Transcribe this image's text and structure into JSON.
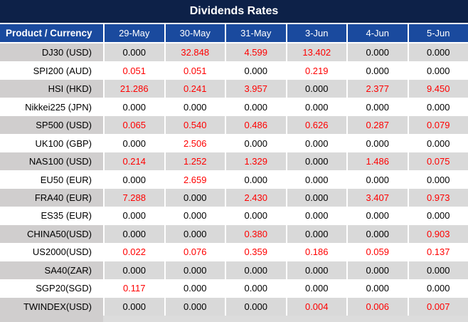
{
  "title": "Dividends Rates",
  "colors": {
    "title_bg": "#0D2148",
    "header_bg": "#1A4A9E",
    "border_white": "#FFFFFF",
    "row_gray": "#D9D9D9",
    "row_gray_first": "#D0CECE",
    "row_white": "#FFFFFF",
    "value_red": "#FF0000",
    "value_black": "#000000",
    "footer_left": "#D0CECE",
    "footer_right": "#DCDCDC"
  },
  "table": {
    "product_header": "Product / Currency",
    "date_columns": [
      "29-May",
      "30-May",
      "31-May",
      "3-Jun",
      "4-Jun",
      "5-Jun"
    ],
    "rows": [
      {
        "product": "DJ30 (USD)",
        "values": [
          "0.000",
          "32.848",
          "4.599",
          "13.402",
          "0.000",
          "0.000"
        ],
        "red": [
          false,
          true,
          true,
          true,
          false,
          false
        ]
      },
      {
        "product": "SPI200 (AUD)",
        "values": [
          "0.051",
          "0.051",
          "0.000",
          "0.219",
          "0.000",
          "0.000"
        ],
        "red": [
          true,
          true,
          false,
          true,
          false,
          false
        ]
      },
      {
        "product": "HSI (HKD)",
        "values": [
          "21.286",
          "0.241",
          "3.957",
          "0.000",
          "2.377",
          "9.450"
        ],
        "red": [
          true,
          true,
          true,
          false,
          true,
          true
        ]
      },
      {
        "product": "Nikkei225 (JPN)",
        "values": [
          "0.000",
          "0.000",
          "0.000",
          "0.000",
          "0.000",
          "0.000"
        ],
        "red": [
          false,
          false,
          false,
          false,
          false,
          false
        ]
      },
      {
        "product": "SP500 (USD)",
        "values": [
          "0.065",
          "0.540",
          "0.486",
          "0.626",
          "0.287",
          "0.079"
        ],
        "red": [
          true,
          true,
          true,
          true,
          true,
          true
        ]
      },
      {
        "product": "UK100 (GBP)",
        "values": [
          "0.000",
          "2.506",
          "0.000",
          "0.000",
          "0.000",
          "0.000"
        ],
        "red": [
          false,
          true,
          false,
          false,
          false,
          false
        ]
      },
      {
        "product": "NAS100 (USD)",
        "values": [
          "0.214",
          "1.252",
          "1.329",
          "0.000",
          "1.486",
          "0.075"
        ],
        "red": [
          true,
          true,
          true,
          false,
          true,
          true
        ]
      },
      {
        "product": "EU50 (EUR)",
        "values": [
          "0.000",
          "2.659",
          "0.000",
          "0.000",
          "0.000",
          "0.000"
        ],
        "red": [
          false,
          true,
          false,
          false,
          false,
          false
        ]
      },
      {
        "product": "FRA40 (EUR)",
        "values": [
          "7.288",
          "0.000",
          "2.430",
          "0.000",
          "3.407",
          "0.973"
        ],
        "red": [
          true,
          false,
          true,
          false,
          true,
          true
        ]
      },
      {
        "product": "ES35 (EUR)",
        "values": [
          "0.000",
          "0.000",
          "0.000",
          "0.000",
          "0.000",
          "0.000"
        ],
        "red": [
          false,
          false,
          false,
          false,
          false,
          false
        ]
      },
      {
        "product": "CHINA50(USD)",
        "values": [
          "0.000",
          "0.000",
          "0.380",
          "0.000",
          "0.000",
          "0.903"
        ],
        "red": [
          false,
          false,
          true,
          false,
          false,
          true
        ]
      },
      {
        "product": "US2000(USD)",
        "values": [
          "0.022",
          "0.076",
          "0.359",
          "0.186",
          "0.059",
          "0.137"
        ],
        "red": [
          true,
          true,
          true,
          true,
          true,
          true
        ]
      },
      {
        "product": "SA40(ZAR)",
        "values": [
          "0.000",
          "0.000",
          "0.000",
          "0.000",
          "0.000",
          "0.000"
        ],
        "red": [
          false,
          false,
          false,
          false,
          false,
          false
        ]
      },
      {
        "product": "SGP20(SGD)",
        "values": [
          "0.117",
          "0.000",
          "0.000",
          "0.000",
          "0.000",
          "0.000"
        ],
        "red": [
          true,
          false,
          false,
          false,
          false,
          false
        ]
      },
      {
        "product": "TWINDEX(USD)",
        "values": [
          "0.000",
          "0.000",
          "0.000",
          "0.004",
          "0.006",
          "0.007"
        ],
        "red": [
          false,
          false,
          false,
          true,
          true,
          true
        ]
      }
    ]
  },
  "chart_data": {
    "type": "table",
    "title": "Dividends Rates",
    "columns": [
      "Product / Currency",
      "29-May",
      "30-May",
      "31-May",
      "3-Jun",
      "4-Jun",
      "5-Jun"
    ],
    "rows": [
      [
        "DJ30 (USD)",
        0.0,
        32.848,
        4.599,
        13.402,
        0.0,
        0.0
      ],
      [
        "SPI200 (AUD)",
        0.051,
        0.051,
        0.0,
        0.219,
        0.0,
        0.0
      ],
      [
        "HSI (HKD)",
        21.286,
        0.241,
        3.957,
        0.0,
        2.377,
        9.45
      ],
      [
        "Nikkei225 (JPN)",
        0.0,
        0.0,
        0.0,
        0.0,
        0.0,
        0.0
      ],
      [
        "SP500 (USD)",
        0.065,
        0.54,
        0.486,
        0.626,
        0.287,
        0.079
      ],
      [
        "UK100 (GBP)",
        0.0,
        2.506,
        0.0,
        0.0,
        0.0,
        0.0
      ],
      [
        "NAS100 (USD)",
        0.214,
        1.252,
        1.329,
        0.0,
        1.486,
        0.075
      ],
      [
        "EU50 (EUR)",
        0.0,
        2.659,
        0.0,
        0.0,
        0.0,
        0.0
      ],
      [
        "FRA40 (EUR)",
        7.288,
        0.0,
        2.43,
        0.0,
        3.407,
        0.973
      ],
      [
        "ES35 (EUR)",
        0.0,
        0.0,
        0.0,
        0.0,
        0.0,
        0.0
      ],
      [
        "CHINA50(USD)",
        0.0,
        0.0,
        0.38,
        0.0,
        0.0,
        0.903
      ],
      [
        "US2000(USD)",
        0.022,
        0.076,
        0.359,
        0.186,
        0.059,
        0.137
      ],
      [
        "SA40(ZAR)",
        0.0,
        0.0,
        0.0,
        0.0,
        0.0,
        0.0
      ],
      [
        "SGP20(SGD)",
        0.117,
        0.0,
        0.0,
        0.0,
        0.0,
        0.0
      ],
      [
        "TWINDEX(USD)",
        0.0,
        0.0,
        0.0,
        0.004,
        0.006,
        0.007
      ]
    ],
    "notes": "Non-zero dividend values are shown in red; zero values in black. Rows alternate gray/white starting gray."
  }
}
